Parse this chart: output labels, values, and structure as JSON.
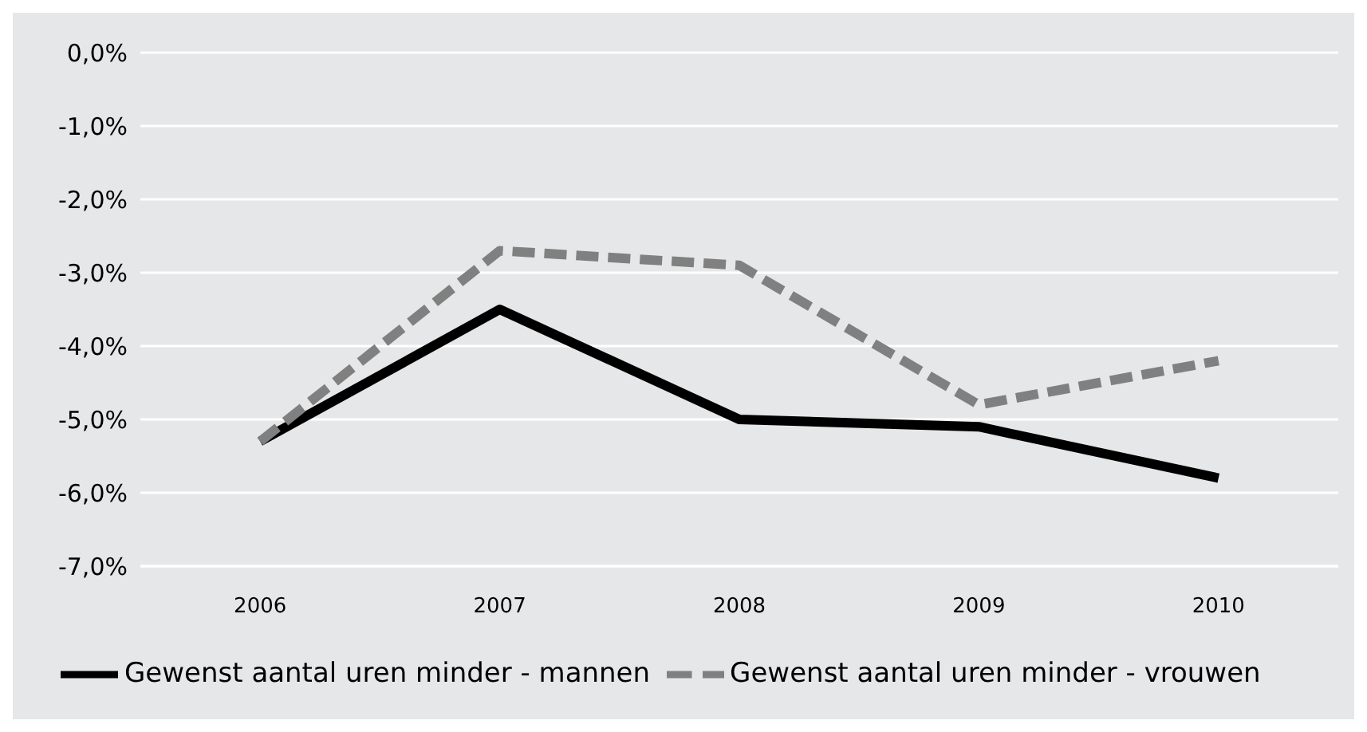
{
  "chart_data": {
    "type": "line",
    "categories": [
      "2006",
      "2007",
      "2008",
      "2009",
      "2010"
    ],
    "series": [
      {
        "name": "Gewenst aantal uren minder - mannen",
        "color": "#000000",
        "values": [
          -5.3,
          -3.5,
          -5.0,
          -5.1,
          -5.8
        ],
        "line_style": "solid"
      },
      {
        "name": "Gewenst aantal uren minder - vrouwen",
        "color": "#808080",
        "values": [
          -5.3,
          -2.7,
          -2.9,
          -4.8,
          -4.2
        ],
        "line_style": "dashed"
      }
    ],
    "ylim": [
      -7,
      0
    ],
    "yticks": [
      {
        "value": -7,
        "label": "-7,0%"
      },
      {
        "value": -6,
        "label": "-6,0%"
      },
      {
        "value": -5,
        "label": "-5,0%"
      },
      {
        "value": -4,
        "label": "-4,0%"
      },
      {
        "value": -3,
        "label": "-3,0%"
      },
      {
        "value": -2,
        "label": "-2,0%"
      },
      {
        "value": -1,
        "label": "-1,0%"
      },
      {
        "value": 0,
        "label": "0,0%"
      }
    ],
    "grid": "y",
    "legend": "bottom",
    "marker": "none"
  }
}
